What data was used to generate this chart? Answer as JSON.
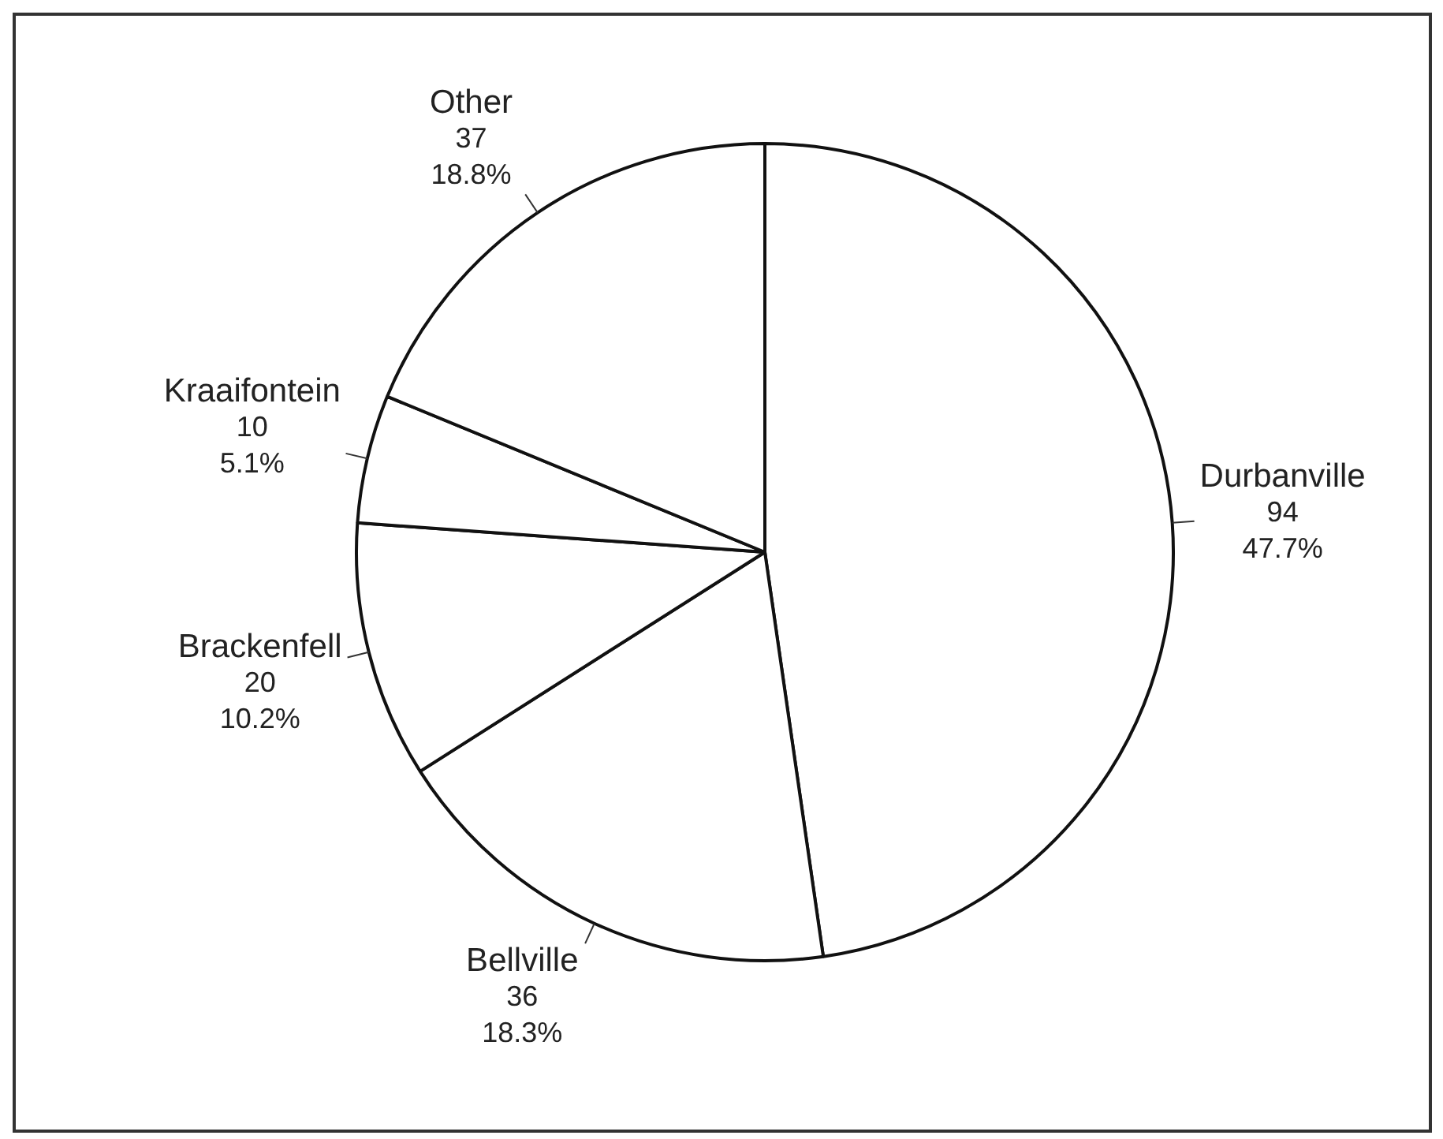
{
  "chart_data": {
    "type": "pie",
    "categories": [
      "Durbanville",
      "Bellville",
      "Brackenfell",
      "Kraaifontein",
      "Other"
    ],
    "values": [
      94,
      36,
      20,
      10,
      37
    ],
    "colors": [
      "#ffffff",
      "#ffffff",
      "#ffffff",
      "#ffffff",
      "#ffffff"
    ],
    "value_labels": [
      "94\n47.7%",
      "36\n18.3%",
      "20\n10.2%",
      "10\n5.1%",
      "37\n18.8%"
    ],
    "legend": false
  }
}
